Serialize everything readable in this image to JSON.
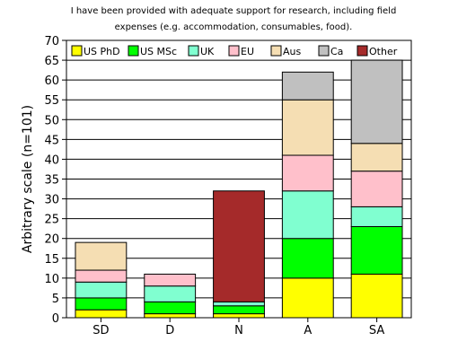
{
  "chart_data": {
    "type": "bar",
    "stacked": true,
    "title_line1": "I have been provided with adequate support for research, including field",
    "title_line2": "expenses (e.g. accommodation, consumables, food).",
    "xlabel": "",
    "ylabel": "Arbitrary scale (n=101)",
    "ylim": [
      0,
      70
    ],
    "yticks": [
      0,
      5,
      10,
      15,
      20,
      25,
      30,
      35,
      40,
      45,
      50,
      55,
      60,
      65,
      70
    ],
    "grid": "horizontal",
    "legend_position": "top",
    "categories": [
      "SD",
      "D",
      "N",
      "A",
      "SA"
    ],
    "series": [
      {
        "name": "US PhD",
        "color": "#ffff00",
        "values": [
          2,
          1,
          1,
          10,
          11
        ]
      },
      {
        "name": "US MSc",
        "color": "#00ff00",
        "values": [
          3,
          3,
          2,
          10,
          12
        ]
      },
      {
        "name": "UK",
        "color": "#80ffd0",
        "values": [
          4,
          4,
          1,
          12,
          5
        ]
      },
      {
        "name": "EU",
        "color": "#ffc0cb",
        "values": [
          3,
          3,
          0,
          9,
          9
        ]
      },
      {
        "name": "Aus",
        "color": "#f5deb3",
        "values": [
          7,
          0,
          0,
          14,
          7
        ]
      },
      {
        "name": "Ca",
        "color": "#c0c0c0",
        "values": [
          0,
          0,
          0,
          7,
          21
        ]
      },
      {
        "name": "Other",
        "color": "#a52a2a",
        "values": [
          0,
          0,
          28,
          0,
          0
        ]
      }
    ]
  }
}
